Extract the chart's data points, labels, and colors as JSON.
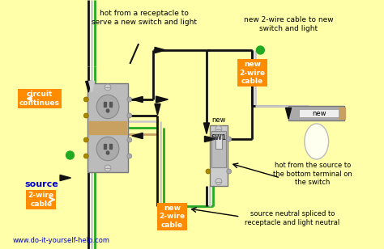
{
  "bg_color": "#FFFFAA",
  "wire_black": "#111111",
  "wire_white": "#CCCCCC",
  "wire_green": "#22AA22",
  "wire_bare": "#C8A060",
  "label_bg": "#FF8C00",
  "source_color": "#0000CC",
  "url_color": "#0000CC",
  "outlet_gray": "#AAAAAA",
  "outlet_dark": "#888888",
  "outlet_face": "#BBBBBB",
  "switch_gray": "#CCCCCC",
  "switch_face": "#DDDDDD",
  "light_gray": "#999999",
  "light_tan": "#C8A060",
  "light_bulb": "#FFFFF0",
  "top_label1": "hot from a receptacle to\nserve a new switch and light",
  "top_label2": "new 2-wire cable to new\nswitch and light",
  "circuit_continues": "circuit\ncontinues",
  "source_text": "source",
  "cable_2wire": "2-wire\ncable",
  "new_2wire": "new\n2-wire\ncable",
  "sw1": "SW1",
  "new_txt": "new",
  "bottom_label1": "source neutral spliced to\nreceptacle and light neutral",
  "bottom_label2": "hot from the source to\nthe bottom terminal on\nthe switch",
  "url": "www.do-it-yourself-help.com"
}
